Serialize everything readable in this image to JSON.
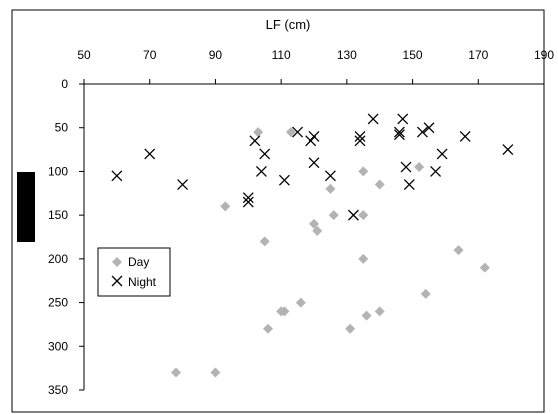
{
  "chart_data": {
    "type": "scatter",
    "title": "LF (cm)",
    "xlabel": "LF (cm)",
    "ylabel": "",
    "x_axis_position": "top",
    "y_axis_inverted": true,
    "xlim": [
      50,
      190
    ],
    "ylim": [
      0,
      350
    ],
    "xticks": [
      "50",
      "70",
      "90",
      "110",
      "130",
      "150",
      "170",
      "190"
    ],
    "yticks": [
      "0",
      "50",
      "100",
      "150",
      "200",
      "250",
      "300",
      "350"
    ],
    "grid": false,
    "legend": {
      "placement": "left",
      "entries": [
        "Day",
        "Night"
      ]
    },
    "series": [
      {
        "name": "Day",
        "marker": "diamond",
        "color": "#b3b3b3",
        "points": [
          [
            78,
            330
          ],
          [
            90,
            330
          ],
          [
            93,
            140
          ],
          [
            103,
            55
          ],
          [
            105,
            180
          ],
          [
            106,
            280
          ],
          [
            110,
            260
          ],
          [
            111,
            260
          ],
          [
            113,
            55
          ],
          [
            116,
            250
          ],
          [
            120,
            160
          ],
          [
            121,
            168
          ],
          [
            125,
            120
          ],
          [
            126,
            150
          ],
          [
            131,
            280
          ],
          [
            135,
            150
          ],
          [
            135,
            100
          ],
          [
            135,
            200
          ],
          [
            136,
            265
          ],
          [
            140,
            115
          ],
          [
            140,
            260
          ],
          [
            152,
            95
          ],
          [
            154,
            240
          ],
          [
            164,
            190
          ],
          [
            172,
            210
          ]
        ]
      },
      {
        "name": "Night",
        "marker": "x",
        "color": "#000000",
        "points": [
          [
            60,
            105
          ],
          [
            70,
            80
          ],
          [
            80,
            115
          ],
          [
            100,
            130
          ],
          [
            100,
            135
          ],
          [
            102,
            65
          ],
          [
            104,
            100
          ],
          [
            105,
            80
          ],
          [
            111,
            110
          ],
          [
            115,
            55
          ],
          [
            119,
            65
          ],
          [
            120,
            60
          ],
          [
            120,
            90
          ],
          [
            125,
            105
          ],
          [
            132,
            150
          ],
          [
            134,
            60
          ],
          [
            134,
            65
          ],
          [
            138,
            40
          ],
          [
            146,
            55
          ],
          [
            146,
            58
          ],
          [
            147,
            40
          ],
          [
            148,
            95
          ],
          [
            149,
            115
          ],
          [
            153,
            55
          ],
          [
            155,
            50
          ],
          [
            157,
            100
          ],
          [
            159,
            80
          ],
          [
            166,
            60
          ],
          [
            179,
            75
          ]
        ]
      }
    ]
  }
}
